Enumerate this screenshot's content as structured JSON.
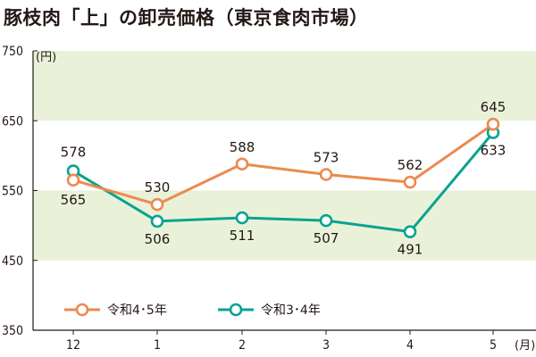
{
  "chart_data": {
    "type": "line",
    "title": "豚枝肉「上」の卸売価格（東京食肉市場）",
    "y_unit": "(円)",
    "x_unit": "(月)",
    "categories": [
      "12",
      "1",
      "2",
      "3",
      "4",
      "5"
    ],
    "ylim": [
      350,
      750
    ],
    "yticks": [
      "750",
      "650",
      "550",
      "450",
      "350"
    ],
    "grid": "alternating horizontal bands",
    "legend_position": "bottom-left",
    "series": [
      {
        "name": "令和4･5年",
        "color": "#ec8a50",
        "values": [
          565,
          530,
          588,
          573,
          562,
          645
        ],
        "labels": [
          "565",
          "530",
          "588",
          "573",
          "562",
          "645"
        ]
      },
      {
        "name": "令和3･4年",
        "color": "#0aa38f",
        "values": [
          578,
          506,
          511,
          507,
          491,
          633
        ],
        "labels": [
          "578",
          "506",
          "511",
          "507",
          "491",
          "633"
        ]
      }
    ]
  }
}
